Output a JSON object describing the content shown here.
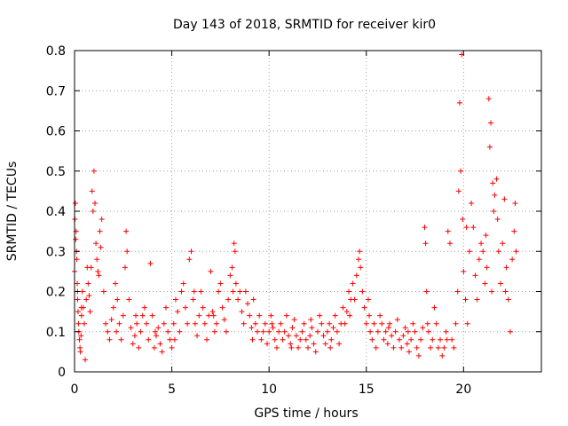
{
  "chart_data": {
    "type": "scatter",
    "title": "Day 143 of 2018, SRMTID for receiver kir0",
    "xlabel": "GPS time / hours",
    "ylabel": "SRMTID / TECUs",
    "xlim": [
      0,
      24
    ],
    "ylim": [
      0,
      0.8
    ],
    "x_ticks": [
      0,
      5,
      10,
      15,
      20
    ],
    "x_tick_labels": [
      "0",
      "5",
      "10",
      "15",
      "20"
    ],
    "y_ticks": [
      0,
      0.1,
      0.2,
      0.3,
      0.4,
      0.5,
      0.6,
      0.7,
      0.8
    ],
    "y_tick_labels": [
      "0",
      "0.1",
      "0.2",
      "0.3",
      "0.4",
      "0.5",
      "0.6",
      "0.7",
      "0.8"
    ],
    "grid": true,
    "marker": "plus",
    "color": "#ff0000",
    "series": [
      {
        "name": "SRMTID",
        "points": [
          [
            0.0,
            0.25
          ],
          [
            0.02,
            0.38
          ],
          [
            0.04,
            0.42
          ],
          [
            0.06,
            0.33
          ],
          [
            0.08,
            0.35
          ],
          [
            0.1,
            0.3
          ],
          [
            0.12,
            0.28
          ],
          [
            0.14,
            0.22
          ],
          [
            0.16,
            0.18
          ],
          [
            0.18,
            0.15
          ],
          [
            0.2,
            0.12
          ],
          [
            0.22,
            0.1
          ],
          [
            0.25,
            0.08
          ],
          [
            0.28,
            0.06
          ],
          [
            0.3,
            0.05
          ],
          [
            0.33,
            0.09
          ],
          [
            0.36,
            0.14
          ],
          [
            0.4,
            0.2
          ],
          [
            0.45,
            0.16
          ],
          [
            0.5,
            0.12
          ],
          [
            0.55,
            0.03
          ],
          [
            0.6,
            0.18
          ],
          [
            0.65,
            0.26
          ],
          [
            0.7,
            0.22
          ],
          [
            0.75,
            0.19
          ],
          [
            0.8,
            0.15
          ],
          [
            0.85,
            0.26
          ],
          [
            0.9,
            0.45
          ],
          [
            0.95,
            0.4
          ],
          [
            1.0,
            0.5
          ],
          [
            1.05,
            0.42
          ],
          [
            1.1,
            0.32
          ],
          [
            1.15,
            0.28
          ],
          [
            1.2,
            0.25
          ],
          [
            1.3,
            0.35
          ],
          [
            1.35,
            0.31
          ],
          [
            1.4,
            0.38
          ],
          [
            1.5,
            0.2
          ],
          [
            1.6,
            0.12
          ],
          [
            1.7,
            0.1
          ],
          [
            1.8,
            0.08
          ],
          [
            1.9,
            0.13
          ],
          [
            2.0,
            0.16
          ],
          [
            2.1,
            0.22
          ],
          [
            2.2,
            0.18
          ],
          [
            2.3,
            0.12
          ],
          [
            2.4,
            0.08
          ],
          [
            2.5,
            0.14
          ],
          [
            2.6,
            0.26
          ],
          [
            2.65,
            0.35
          ],
          [
            2.7,
            0.3
          ],
          [
            2.8,
            0.18
          ],
          [
            2.9,
            0.11
          ],
          [
            3.0,
            0.07
          ],
          [
            3.1,
            0.09
          ],
          [
            3.2,
            0.12
          ],
          [
            3.3,
            0.06
          ],
          [
            3.4,
            0.1
          ],
          [
            3.5,
            0.14
          ],
          [
            3.6,
            0.16
          ],
          [
            3.7,
            0.12
          ],
          [
            3.8,
            0.08
          ],
          [
            3.9,
            0.27
          ],
          [
            4.0,
            0.14
          ],
          [
            4.1,
            0.06
          ],
          [
            4.2,
            0.09
          ],
          [
            4.3,
            0.11
          ],
          [
            4.4,
            0.07
          ],
          [
            4.5,
            0.05
          ],
          [
            4.6,
            0.12
          ],
          [
            4.7,
            0.16
          ],
          [
            4.8,
            0.1
          ],
          [
            4.9,
            0.08
          ],
          [
            5.0,
            0.06
          ],
          [
            5.1,
            0.12
          ],
          [
            5.2,
            0.18
          ],
          [
            5.3,
            0.15
          ],
          [
            5.4,
            0.1
          ],
          [
            5.5,
            0.2
          ],
          [
            5.6,
            0.22
          ],
          [
            5.7,
            0.16
          ],
          [
            5.8,
            0.12
          ],
          [
            5.9,
            0.28
          ],
          [
            6.0,
            0.3
          ],
          [
            6.1,
            0.18
          ],
          [
            6.2,
            0.12
          ],
          [
            6.3,
            0.09
          ],
          [
            6.4,
            0.14
          ],
          [
            6.5,
            0.2
          ],
          [
            6.6,
            0.16
          ],
          [
            6.7,
            0.12
          ],
          [
            6.8,
            0.08
          ],
          [
            6.9,
            0.14
          ],
          [
            7.0,
            0.25
          ],
          [
            7.1,
            0.15
          ],
          [
            7.2,
            0.1
          ],
          [
            7.3,
            0.12
          ],
          [
            7.4,
            0.2
          ],
          [
            7.5,
            0.22
          ],
          [
            7.6,
            0.16
          ],
          [
            7.7,
            0.13
          ],
          [
            7.8,
            0.1
          ],
          [
            7.9,
            0.18
          ],
          [
            8.0,
            0.24
          ],
          [
            8.1,
            0.26
          ],
          [
            8.2,
            0.32
          ],
          [
            8.25,
            0.3
          ],
          [
            8.3,
            0.22
          ],
          [
            8.4,
            0.18
          ],
          [
            8.5,
            0.2
          ],
          [
            8.6,
            0.15
          ],
          [
            8.7,
            0.12
          ],
          [
            8.8,
            0.2
          ],
          [
            8.9,
            0.17
          ],
          [
            9.0,
            0.14
          ],
          [
            9.1,
            0.11
          ],
          [
            9.2,
            0.18
          ],
          [
            9.3,
            0.12
          ],
          [
            9.4,
            0.1
          ],
          [
            9.5,
            0.14
          ],
          [
            9.6,
            0.08
          ],
          [
            9.7,
            0.1
          ],
          [
            9.8,
            0.12
          ],
          [
            9.9,
            0.07
          ],
          [
            10.0,
            0.1
          ],
          [
            10.1,
            0.14
          ],
          [
            10.2,
            0.11
          ],
          [
            10.3,
            0.08
          ],
          [
            10.4,
            0.06
          ],
          [
            10.5,
            0.1
          ],
          [
            10.6,
            0.12
          ],
          [
            10.7,
            0.08
          ],
          [
            10.8,
            0.1
          ],
          [
            10.9,
            0.14
          ],
          [
            11.0,
            0.09
          ],
          [
            11.1,
            0.07
          ],
          [
            11.2,
            0.11
          ],
          [
            11.3,
            0.13
          ],
          [
            11.4,
            0.09
          ],
          [
            11.5,
            0.06
          ],
          [
            11.6,
            0.08
          ],
          [
            11.7,
            0.1
          ],
          [
            11.8,
            0.12
          ],
          [
            11.9,
            0.08
          ],
          [
            12.0,
            0.06
          ],
          [
            12.1,
            0.09
          ],
          [
            12.2,
            0.11
          ],
          [
            12.3,
            0.07
          ],
          [
            12.4,
            0.05
          ],
          [
            12.5,
            0.1
          ],
          [
            12.6,
            0.14
          ],
          [
            12.7,
            0.12
          ],
          [
            12.8,
            0.09
          ],
          [
            12.9,
            0.07
          ],
          [
            13.0,
            0.1
          ],
          [
            13.1,
            0.12
          ],
          [
            13.2,
            0.08
          ],
          [
            13.3,
            0.11
          ],
          [
            13.4,
            0.14
          ],
          [
            13.5,
            0.1
          ],
          [
            13.6,
            0.07
          ],
          [
            13.7,
            0.12
          ],
          [
            13.8,
            0.16
          ],
          [
            13.9,
            0.12
          ],
          [
            14.0,
            0.15
          ],
          [
            14.1,
            0.2
          ],
          [
            14.2,
            0.18
          ],
          [
            14.3,
            0.22
          ],
          [
            14.4,
            0.18
          ],
          [
            14.5,
            0.24
          ],
          [
            14.6,
            0.28
          ],
          [
            14.65,
            0.3
          ],
          [
            14.7,
            0.26
          ],
          [
            14.8,
            0.2
          ],
          [
            14.9,
            0.16
          ],
          [
            15.0,
            0.12
          ],
          [
            15.1,
            0.18
          ],
          [
            15.2,
            0.1
          ],
          [
            15.3,
            0.08
          ],
          [
            15.4,
            0.12
          ],
          [
            15.5,
            0.06
          ],
          [
            15.6,
            0.1
          ],
          [
            15.7,
            0.14
          ],
          [
            15.8,
            0.12
          ],
          [
            15.9,
            0.08
          ],
          [
            16.0,
            0.1
          ],
          [
            16.1,
            0.07
          ],
          [
            16.2,
            0.12
          ],
          [
            16.3,
            0.09
          ],
          [
            16.4,
            0.06
          ],
          [
            16.5,
            0.1
          ],
          [
            16.6,
            0.13
          ],
          [
            16.7,
            0.08
          ],
          [
            16.8,
            0.06
          ],
          [
            16.9,
            0.09
          ],
          [
            17.0,
            0.11
          ],
          [
            17.1,
            0.07
          ],
          [
            17.2,
            0.05
          ],
          [
            17.3,
            0.08
          ],
          [
            17.4,
            0.12
          ],
          [
            17.5,
            0.1
          ],
          [
            17.6,
            0.06
          ],
          [
            17.7,
            0.04
          ],
          [
            17.8,
            0.08
          ],
          [
            17.9,
            0.11
          ],
          [
            18.0,
            0.36
          ],
          [
            18.05,
            0.32
          ],
          [
            18.1,
            0.2
          ],
          [
            18.2,
            0.1
          ],
          [
            18.3,
            0.06
          ],
          [
            18.4,
            0.08
          ],
          [
            18.5,
            0.16
          ],
          [
            18.6,
            0.12
          ],
          [
            18.7,
            0.06
          ],
          [
            18.8,
            0.08
          ],
          [
            18.9,
            0.04
          ],
          [
            19.0,
            0.06
          ],
          [
            19.1,
            0.1
          ],
          [
            19.2,
            0.35
          ],
          [
            19.3,
            0.32
          ],
          [
            19.4,
            0.08
          ],
          [
            19.5,
            0.06
          ],
          [
            19.6,
            0.12
          ],
          [
            19.7,
            0.2
          ],
          [
            19.75,
            0.45
          ],
          [
            19.8,
            0.67
          ],
          [
            19.85,
            0.5
          ],
          [
            19.9,
            0.79
          ],
          [
            19.95,
            0.38
          ],
          [
            20.0,
            0.25
          ],
          [
            20.1,
            0.18
          ],
          [
            20.2,
            0.12
          ],
          [
            20.3,
            0.3
          ],
          [
            20.4,
            0.42
          ],
          [
            20.5,
            0.36
          ],
          [
            20.6,
            0.24
          ],
          [
            20.7,
            0.18
          ],
          [
            20.8,
            0.28
          ],
          [
            20.9,
            0.32
          ],
          [
            21.0,
            0.3
          ],
          [
            21.1,
            0.22
          ],
          [
            21.2,
            0.26
          ],
          [
            21.3,
            0.68
          ],
          [
            21.35,
            0.56
          ],
          [
            21.4,
            0.62
          ],
          [
            21.5,
            0.47
          ],
          [
            21.55,
            0.4
          ],
          [
            21.6,
            0.44
          ],
          [
            21.7,
            0.48
          ],
          [
            21.75,
            0.38
          ],
          [
            21.8,
            0.3
          ],
          [
            21.9,
            0.22
          ],
          [
            22.0,
            0.32
          ],
          [
            22.1,
            0.43
          ],
          [
            22.2,
            0.26
          ],
          [
            22.3,
            0.18
          ],
          [
            22.4,
            0.1
          ],
          [
            22.5,
            0.28
          ],
          [
            22.6,
            0.35
          ],
          [
            22.65,
            0.42
          ],
          [
            22.7,
            0.3
          ],
          [
            0.15,
            0.2
          ],
          [
            0.35,
            0.16
          ],
          [
            1.25,
            0.24
          ],
          [
            2.15,
            0.1
          ],
          [
            3.15,
            0.14
          ],
          [
            4.15,
            0.1
          ],
          [
            5.15,
            0.08
          ],
          [
            6.15,
            0.2
          ],
          [
            7.15,
            0.14
          ],
          [
            8.15,
            0.2
          ],
          [
            9.15,
            0.08
          ],
          [
            10.15,
            0.12
          ],
          [
            11.15,
            0.06
          ],
          [
            12.15,
            0.13
          ],
          [
            13.15,
            0.06
          ],
          [
            14.15,
            0.14
          ],
          [
            15.15,
            0.14
          ],
          [
            16.15,
            0.11
          ],
          [
            17.15,
            0.1
          ],
          [
            18.15,
            0.12
          ],
          [
            19.15,
            0.08
          ],
          [
            20.15,
            0.36
          ],
          [
            21.15,
            0.34
          ],
          [
            21.45,
            0.2
          ],
          [
            22.15,
            0.2
          ]
        ]
      }
    ]
  }
}
